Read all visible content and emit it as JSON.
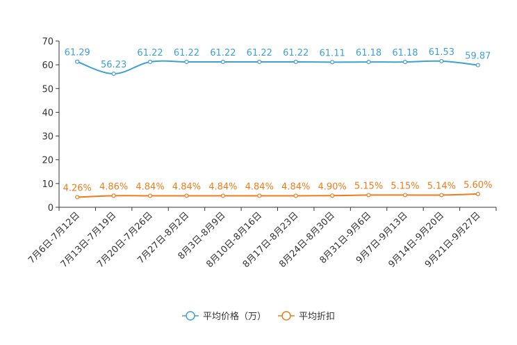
{
  "chart_data": {
    "type": "line",
    "categories": [
      "7月6日-7月12日",
      "7月13日-7月19日",
      "7月20日-7月26日",
      "7月27日-8月2日",
      "8月3日-8月9日",
      "8月10日-8月16日",
      "8月17日-8月23日",
      "8月24日-8月30日",
      "8月31日-9月6日",
      "9月7日-9月13日",
      "9月14日-9月20日",
      "9月21日-9月27日"
    ],
    "ylim": [
      0,
      70
    ],
    "yticks": [
      0,
      10,
      20,
      30,
      40,
      50,
      60,
      70
    ],
    "series": [
      {
        "name": "平均价格（万）",
        "color": "#3ea0d0",
        "values": [
          61.29,
          56.23,
          61.22,
          61.22,
          61.22,
          61.22,
          61.22,
          61.11,
          61.18,
          61.18,
          61.53,
          59.87
        ],
        "labels": [
          "61.29",
          "56.23",
          "61.22",
          "61.22",
          "61.22",
          "61.22",
          "61.22",
          "61.11",
          "61.18",
          "61.18",
          "61.53",
          "59.87"
        ]
      },
      {
        "name": "平均折扣",
        "color": "#f07b1a",
        "values": [
          4.26,
          4.86,
          4.84,
          4.84,
          4.84,
          4.84,
          4.84,
          4.9,
          5.15,
          5.15,
          5.14,
          5.6
        ],
        "labels": [
          "4.26%",
          "4.86%",
          "4.84%",
          "4.84%",
          "4.84%",
          "4.84%",
          "4.84%",
          "4.90%",
          "5.15%",
          "5.15%",
          "5.14%",
          "5.60%"
        ]
      }
    ],
    "legend_position": "bottom-center",
    "grid": false
  }
}
